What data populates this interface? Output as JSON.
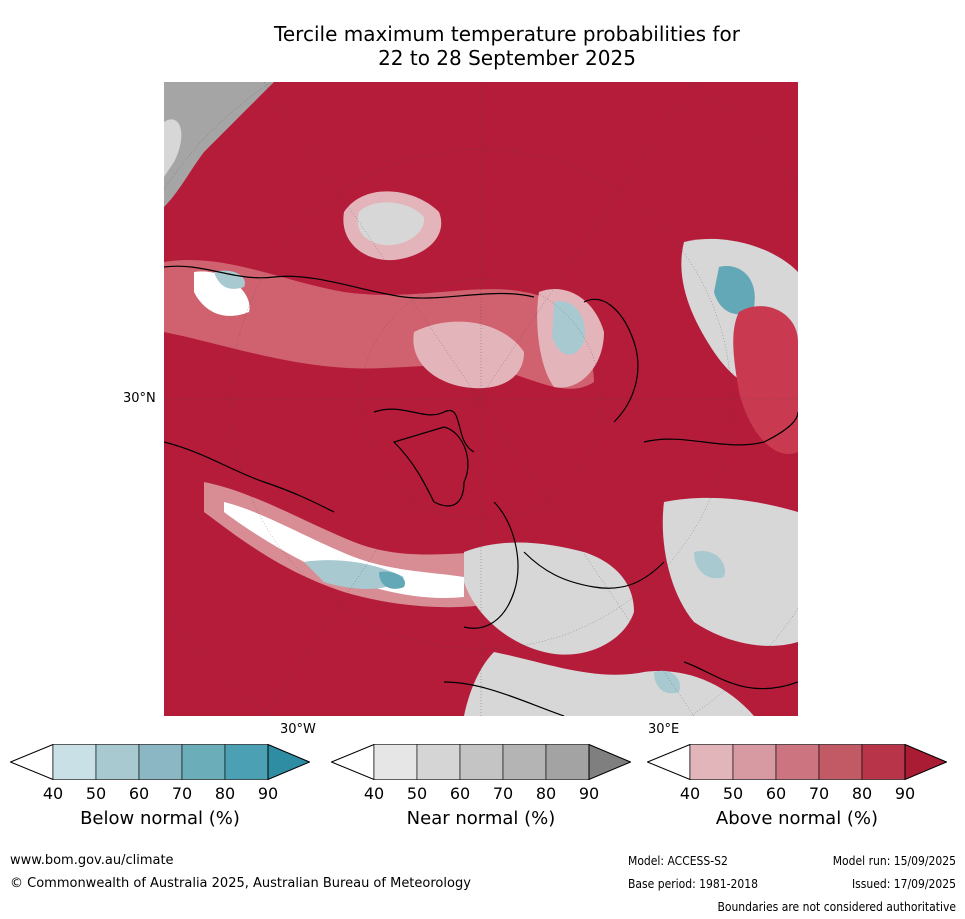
{
  "title_line1": "Tercile maximum temperature probabilities for",
  "title_line2": "22 to 28 September 2025",
  "map": {
    "labels": {
      "lat30": "30°N",
      "lon30w": "30°W",
      "lon30e": "30°E"
    },
    "colors": {
      "above_90": "#b51c3a",
      "above_80": "#c93a50",
      "above_70": "#d0626f",
      "above_60": "#d88c94",
      "above_50": "#e3b5ba",
      "near_50": "#d7d7d7",
      "near_60": "#c4c4c4",
      "near_80": "#a5a5a5",
      "below_50": "#a8c9d0",
      "below_70": "#62a8b7",
      "below_80": "#3f9aad",
      "white": "#ffffff"
    }
  },
  "colorbars": [
    {
      "title": "Below normal (%)",
      "ticks": [
        "40",
        "50",
        "60",
        "70",
        "80",
        "90"
      ],
      "colors": [
        "#c9e0e6",
        "#a7c9cf",
        "#8bb6c3",
        "#6badb8",
        "#4ba1b3",
        "#2e8ca3"
      ]
    },
    {
      "title": "Near normal (%)",
      "ticks": [
        "40",
        "50",
        "60",
        "70",
        "80",
        "90"
      ],
      "colors": [
        "#e6e6e6",
        "#d5d5d5",
        "#c4c4c4",
        "#b4b4b4",
        "#a3a3a3",
        "#7f7f7f"
      ]
    },
    {
      "title": "Above normal (%)",
      "ticks": [
        "40",
        "50",
        "60",
        "70",
        "80",
        "90"
      ],
      "colors": [
        "#e2b5bb",
        "#d79aa2",
        "#cc7480",
        "#c25a66",
        "#b83449",
        "#aa1c33"
      ]
    }
  ],
  "footer": {
    "url": "www.bom.gov.au/climate",
    "copyright": "© Commonwealth of Australia 2025, Australian Bureau of Meteorology",
    "model": "Model: ACCESS-S2",
    "base_period": "Base period: 1981-2018",
    "model_run": "Model run: 15/09/2025",
    "issued": "Issued: 17/09/2025",
    "disclaimer": "Boundaries are not considered authoritative"
  }
}
